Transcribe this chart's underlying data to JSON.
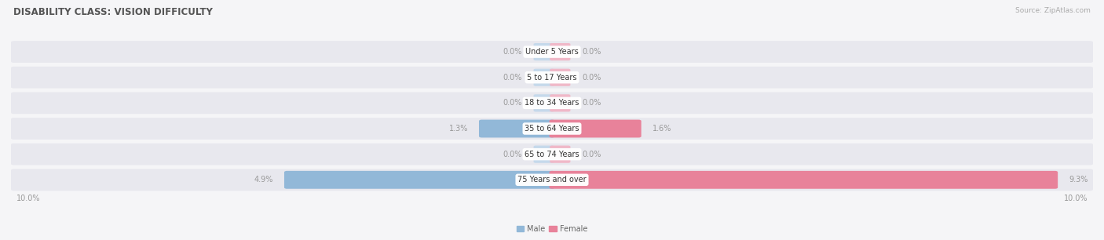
{
  "title": "DISABILITY CLASS: VISION DIFFICULTY",
  "source": "Source: ZipAtlas.com",
  "categories": [
    "Under 5 Years",
    "5 to 17 Years",
    "18 to 34 Years",
    "35 to 64 Years",
    "65 to 74 Years",
    "75 Years and over"
  ],
  "male_values": [
    0.0,
    0.0,
    0.0,
    1.3,
    0.0,
    4.9
  ],
  "female_values": [
    0.0,
    0.0,
    0.0,
    1.6,
    0.0,
    9.3
  ],
  "male_color": "#92b8d8",
  "female_color": "#e8829a",
  "male_stub_color": "#c5d9eb",
  "female_stub_color": "#f0b8c8",
  "row_bg_color": "#e8e8ee",
  "fig_bg_color": "#f5f5f7",
  "label_color": "#999999",
  "axis_max": 10.0,
  "stub_size": 0.3,
  "title_fontsize": 8.5,
  "source_fontsize": 6.5,
  "bar_label_fontsize": 7.0,
  "cat_fontsize": 7.0,
  "axis_label_fontsize": 7.0
}
